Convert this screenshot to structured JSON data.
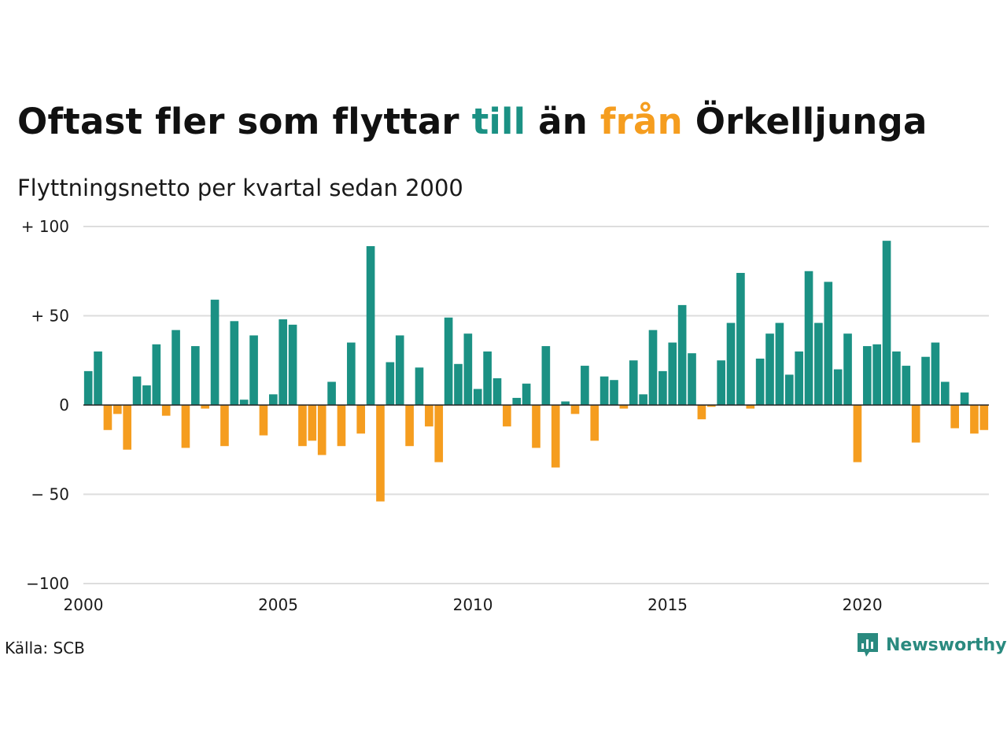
{
  "title": {
    "part1": "Oftast fler som flyttar ",
    "highlight_in": "till",
    "part2": " än ",
    "highlight_out": "från",
    "part3": " Örkelljunga"
  },
  "subtitle": "Flyttningsnetto per kvartal sedan 2000",
  "source": "Källa: SCB",
  "brand": "Newsworthy",
  "colors": {
    "positive": "#1b9184",
    "negative": "#f59d1f",
    "grid": "#dddddd",
    "zero_line": "#222222",
    "brand": "#2a8a7f"
  },
  "chart_data": {
    "type": "bar",
    "title": "Oftast fler som flyttar till än från Örkelljunga",
    "subtitle": "Flyttningsnetto per kvartal sedan 2000",
    "x_start_year": 2000,
    "periods_per_year": 4,
    "xlim": [
      2000,
      2023.25
    ],
    "ylim": [
      -100,
      100
    ],
    "y_ticks": [
      100,
      50,
      0,
      -50,
      -100
    ],
    "y_tick_labels": [
      "+ 100",
      "+  50",
      "0",
      "− 50",
      "−100"
    ],
    "x_ticks": [
      2000,
      2005,
      2010,
      2015,
      2020
    ],
    "x_tick_labels": [
      "2000",
      "2005",
      "2010",
      "2015",
      "2020"
    ],
    "grid": true,
    "values": [
      19,
      30,
      -14,
      -5,
      -25,
      16,
      11,
      34,
      -6,
      42,
      -24,
      33,
      -2,
      59,
      -23,
      47,
      3,
      39,
      -17,
      6,
      48,
      45,
      -23,
      -20,
      -28,
      13,
      -23,
      35,
      -16,
      89,
      -54,
      24,
      39,
      -23,
      21,
      -12,
      -32,
      49,
      23,
      40,
      9,
      30,
      15,
      -12,
      4,
      12,
      -24,
      33,
      -35,
      2,
      -5,
      22,
      -20,
      16,
      14,
      -2,
      25,
      6,
      42,
      19,
      35,
      56,
      29,
      -8,
      -1,
      25,
      46,
      74,
      -2,
      26,
      40,
      46,
      17,
      30,
      75,
      46,
      69,
      20,
      40,
      -32,
      33,
      34,
      92,
      30,
      22,
      -21,
      27,
      35,
      13,
      -13,
      7,
      -16,
      -14
    ]
  }
}
